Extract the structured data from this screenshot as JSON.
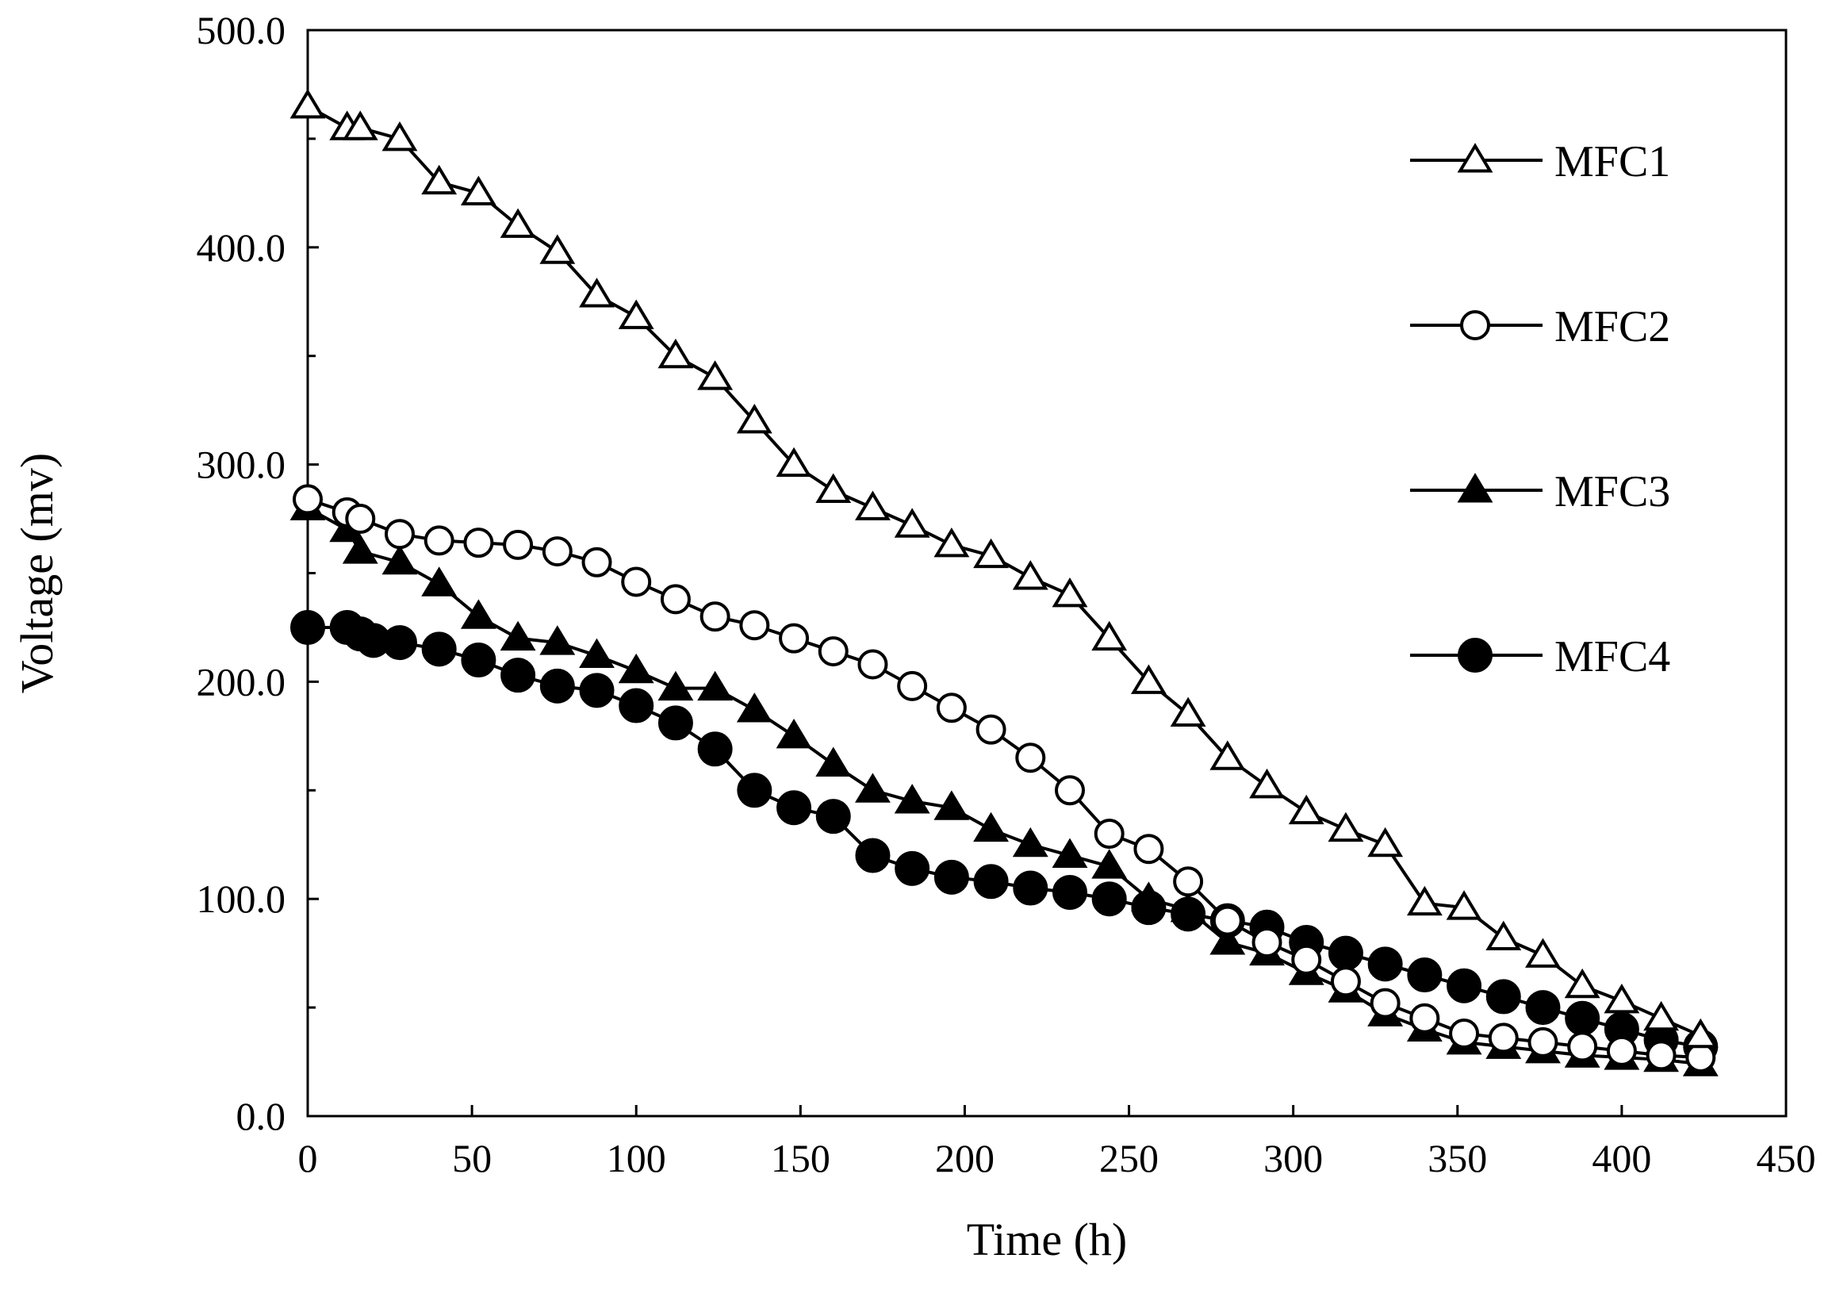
{
  "chart_data": {
    "type": "line",
    "title": "",
    "xlabel": "Time (h)",
    "ylabel": "Voltage (mv)",
    "xlim": [
      0,
      450
    ],
    "ylim": [
      0,
      500
    ],
    "xticks": [
      "0",
      "50",
      "100",
      "150",
      "200",
      "250",
      "300",
      "350",
      "400",
      "450"
    ],
    "yticks": [
      "0.0",
      "100.0",
      "200.0",
      "300.0",
      "400.0",
      "500.0"
    ],
    "grid": false,
    "legend_position": "top-right",
    "series": [
      {
        "name": "MFC1",
        "marker": "open-triangle",
        "x": [
          0,
          12,
          16,
          28,
          40,
          52,
          64,
          76,
          88,
          100,
          112,
          124,
          136,
          148,
          160,
          172,
          184,
          196,
          208,
          220,
          232,
          244,
          256,
          268,
          280,
          292,
          304,
          316,
          328,
          340,
          352,
          364,
          376,
          388,
          400,
          412,
          424
        ],
        "values": [
          465,
          455,
          455,
          450,
          430,
          425,
          410,
          398,
          378,
          368,
          350,
          340,
          320,
          300,
          288,
          280,
          272,
          263,
          258,
          248,
          240,
          220,
          200,
          185,
          165,
          152,
          140,
          132,
          125,
          98,
          96,
          82,
          74,
          60,
          53,
          45,
          37
        ]
      },
      {
        "name": "MFC2",
        "marker": "open-circle",
        "x": [
          0,
          12,
          16,
          28,
          40,
          52,
          64,
          76,
          88,
          100,
          112,
          124,
          136,
          148,
          160,
          172,
          184,
          196,
          208,
          220,
          232,
          244,
          256,
          268,
          280,
          292,
          304,
          316,
          328,
          340,
          352,
          364,
          376,
          388,
          400,
          412,
          424
        ],
        "values": [
          284,
          278,
          275,
          268,
          265,
          264,
          263,
          260,
          255,
          246,
          238,
          230,
          226,
          220,
          214,
          208,
          198,
          188,
          178,
          165,
          150,
          130,
          123,
          108,
          90,
          80,
          72,
          62,
          52,
          45,
          38,
          36,
          34,
          32,
          30,
          28,
          27
        ]
      },
      {
        "name": "MFC3",
        "marker": "filled-triangle",
        "x": [
          0,
          12,
          16,
          28,
          40,
          52,
          64,
          76,
          88,
          100,
          112,
          124,
          136,
          148,
          160,
          172,
          184,
          196,
          208,
          220,
          232,
          244,
          256,
          268,
          280,
          292,
          304,
          316,
          328,
          340,
          352,
          364,
          376,
          388,
          400,
          412,
          424
        ],
        "values": [
          280,
          270,
          260,
          255,
          245,
          230,
          220,
          218,
          212,
          205,
          197,
          197,
          187,
          175,
          162,
          150,
          145,
          142,
          132,
          125,
          120,
          115,
          100,
          95,
          80,
          75,
          66,
          58,
          47,
          40,
          34,
          32,
          30,
          28,
          27,
          26,
          24
        ]
      },
      {
        "name": "MFC4",
        "marker": "filled-circle",
        "x": [
          0,
          12,
          16,
          20,
          28,
          40,
          52,
          64,
          76,
          88,
          100,
          112,
          124,
          136,
          148,
          160,
          172,
          184,
          196,
          208,
          220,
          232,
          244,
          256,
          268,
          280,
          292,
          304,
          316,
          328,
          340,
          352,
          364,
          376,
          388,
          400,
          412,
          424
        ],
        "values": [
          225,
          225,
          222,
          219,
          218,
          215,
          210,
          203,
          198,
          196,
          189,
          181,
          169,
          150,
          142,
          138,
          120,
          114,
          110,
          108,
          105,
          103,
          100,
          96,
          93,
          90,
          87,
          80,
          75,
          70,
          65,
          60,
          55,
          50,
          45,
          40,
          35,
          32
        ]
      }
    ]
  }
}
